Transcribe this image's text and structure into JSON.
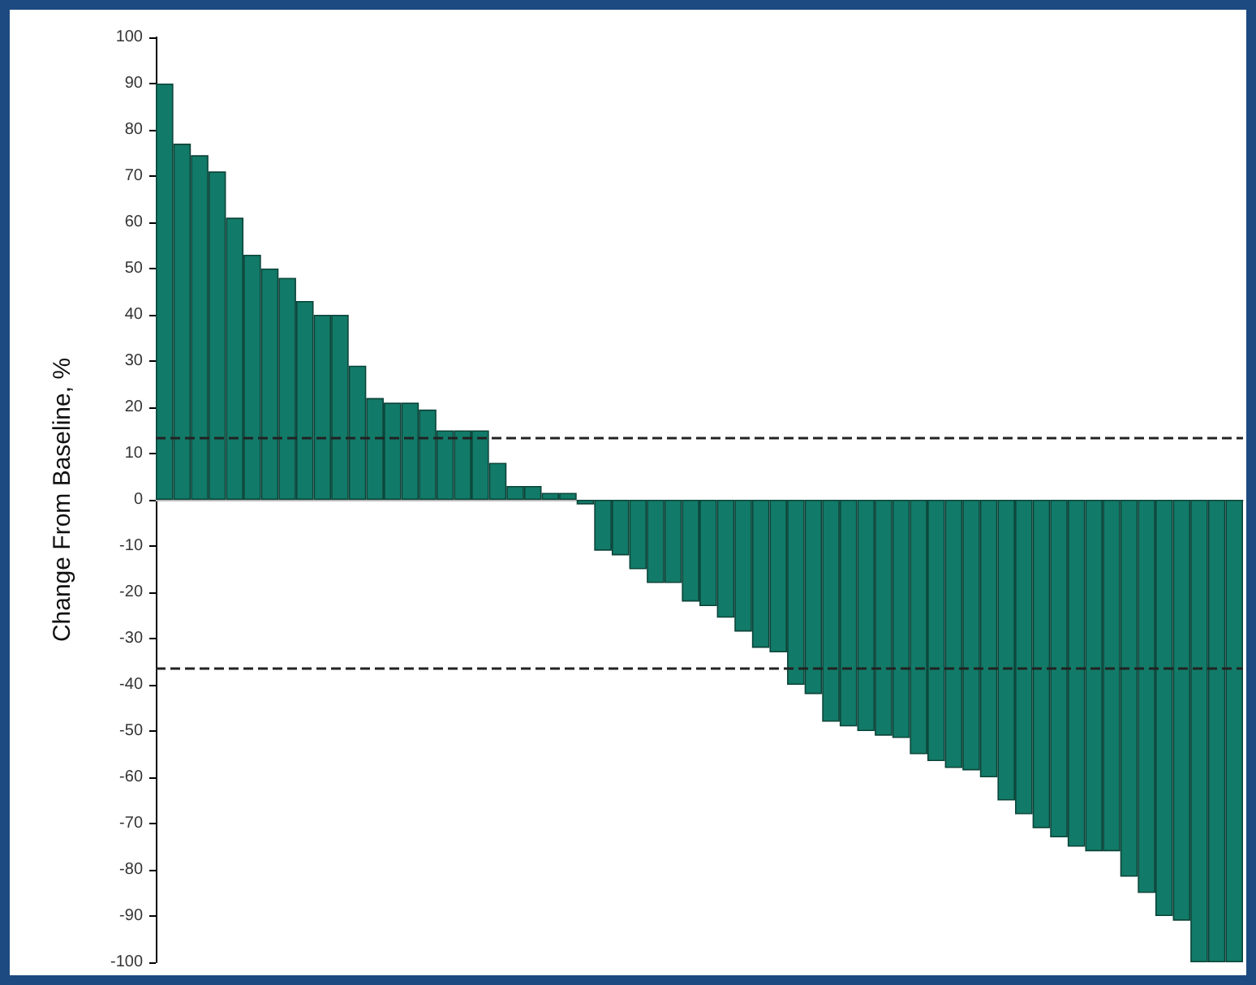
{
  "chart_data": {
    "type": "bar",
    "ylabel": "Change From Baseline, %",
    "categories": [
      null,
      null,
      null,
      null,
      null,
      null,
      null,
      null,
      null,
      null,
      null,
      null,
      null,
      null,
      null,
      null,
      null,
      null,
      null,
      null,
      null,
      null,
      null,
      null,
      null,
      null,
      null,
      null,
      null,
      null,
      null,
      null,
      null,
      null,
      null,
      null,
      null,
      null,
      null,
      null,
      null,
      null,
      null,
      null,
      null,
      null,
      null,
      null,
      null,
      null,
      null,
      null,
      null,
      null,
      null,
      null,
      null,
      null,
      null,
      null,
      null,
      null
    ],
    "values": [
      90,
      77,
      74.5,
      71,
      61,
      53,
      50,
      48,
      43,
      40,
      40,
      29,
      22,
      21,
      21,
      19.5,
      15,
      15,
      15,
      8,
      3,
      3,
      1.5,
      1.5,
      -1,
      -11,
      -12,
      -15,
      -18,
      -18,
      -22,
      -23,
      -25.5,
      -28.5,
      -32,
      -33,
      -40,
      -42,
      -48,
      -49,
      -50,
      -51,
      -51.5,
      -55,
      -56.5,
      -58,
      -58.5,
      -60,
      -65,
      -68,
      -71,
      -73,
      -75,
      -76,
      -76,
      -81.5,
      -85,
      -90,
      -91,
      -100,
      -100,
      -100
    ],
    "color": "#127a68",
    "ylim": [
      -100,
      100
    ],
    "yticks": [
      -100,
      -90,
      -80,
      -70,
      -60,
      -50,
      -40,
      -30,
      -20,
      -10,
      0,
      10,
      20,
      30,
      40,
      50,
      60,
      70,
      80,
      90,
      100
    ],
    "ref_lines": [
      {
        "axis": "y",
        "value": 13.5,
        "color": "#222222",
        "line_style": "dashed"
      },
      {
        "axis": "y",
        "value": -36.5,
        "color": "#222222",
        "line_style": "dashed"
      }
    ]
  }
}
